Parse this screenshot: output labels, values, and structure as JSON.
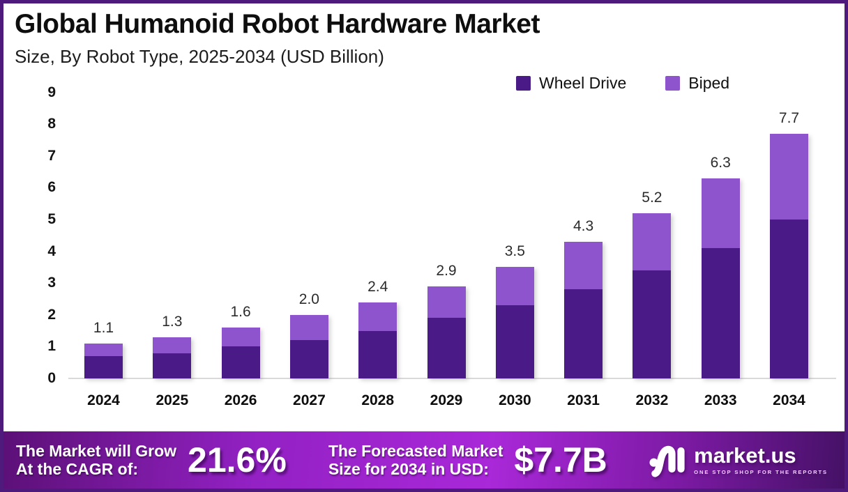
{
  "header": {
    "title": "Global Humanoid Robot Hardware Market",
    "subtitle": "Size, By Robot Type, 2025-2034 (USD Billion)"
  },
  "chart_data": {
    "type": "bar",
    "stacked": true,
    "title": "Global Humanoid Robot Hardware Market",
    "subtitle": "Size, By Robot Type, 2025-2034 (USD Billion)",
    "unit": "USD Billion",
    "categories": [
      "2024",
      "2025",
      "2026",
      "2027",
      "2028",
      "2029",
      "2030",
      "2031",
      "2032",
      "2033",
      "2034"
    ],
    "series": [
      {
        "name": "Wheel Drive",
        "color": "#4A1A86",
        "values": [
          0.7,
          0.8,
          1.0,
          1.2,
          1.5,
          1.9,
          2.3,
          2.8,
          3.4,
          4.1,
          5.0
        ]
      },
      {
        "name": "Biped",
        "color": "#8E54CE",
        "values": [
          0.4,
          0.5,
          0.6,
          0.8,
          0.9,
          1.0,
          1.2,
          1.5,
          1.8,
          2.2,
          2.7
        ]
      }
    ],
    "totals": [
      "1.1",
      "1.3",
      "1.6",
      "2.0",
      "2.4",
      "2.9",
      "3.5",
      "4.3",
      "5.2",
      "6.3",
      "7.7"
    ],
    "yticks": [
      "0",
      "1",
      "2",
      "3",
      "4",
      "5",
      "6",
      "7",
      "8",
      "9"
    ],
    "ylim": [
      0,
      9
    ],
    "legend_position": "top-right",
    "grid": false
  },
  "footer": {
    "cagr_label_line1": "The Market will Grow",
    "cagr_label_line2": "At the CAGR of:",
    "cagr_value": "21.6%",
    "forecast_label_line1": "The Forecasted Market",
    "forecast_label_line2": "Size for 2034 in USD:",
    "forecast_value": "$7.7B",
    "brand": "market.us",
    "brand_tagline": "ONE STOP SHOP FOR THE REPORTS"
  },
  "colors": {
    "frame_border": "#4E1B7D",
    "axis_line": "#D9D9D9",
    "footer_gradient_start": "#5C1077",
    "footer_gradient_mid": "#A928D8",
    "footer_gradient_end": "#451166"
  }
}
